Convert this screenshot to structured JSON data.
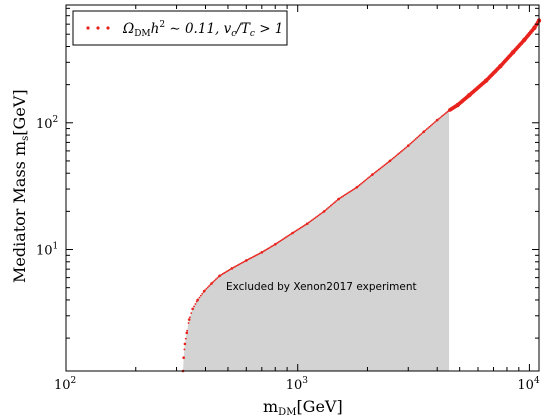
{
  "chart_data": {
    "type": "scatter",
    "x_scale": "log",
    "y_scale": "log",
    "xlim": [
      100,
      11000
    ],
    "ylim": [
      1.1,
      850
    ],
    "x_ticks": [
      {
        "value": 100,
        "base": "10",
        "exp": "2"
      },
      {
        "value": 1000,
        "base": "10",
        "exp": "3"
      },
      {
        "value": 10000,
        "base": "10",
        "exp": "4"
      }
    ],
    "y_ticks": [
      {
        "value": 10,
        "base": "10",
        "exp": "1"
      },
      {
        "value": 100,
        "base": "10",
        "exp": "2"
      }
    ],
    "xlabel": {
      "main": "m",
      "sub": "DM",
      "unit": "[GeV]"
    },
    "ylabel": {
      "main": "Mediator Mass m",
      "sub": "s",
      "unit": "[GeV]"
    },
    "legend": {
      "position": "top-left",
      "label": {
        "pre": "Ω",
        "sub1": "DM",
        "mid1": "h",
        "sup1": "2",
        "mid2": " ∼ 0.11, v",
        "sub2": "c",
        "mid3": "/T",
        "sub3": "c",
        "post": " > 1"
      }
    },
    "series": [
      {
        "name": "Ω_DM h² ∼ 0.11, v_c/T_c > 1",
        "color": "#e8231d",
        "marker": "dot",
        "points": [
          [
            320,
            1.1
          ],
          [
            322,
            1.4
          ],
          [
            326,
            1.8
          ],
          [
            332,
            2.2
          ],
          [
            340,
            2.8
          ],
          [
            352,
            3.4
          ],
          [
            370,
            4.0
          ],
          [
            395,
            4.7
          ],
          [
            425,
            5.4
          ],
          [
            460,
            6.2
          ],
          [
            520,
            7.1
          ],
          [
            600,
            8.2
          ],
          [
            700,
            9.5
          ],
          [
            800,
            11
          ],
          [
            950,
            13.5
          ],
          [
            1100,
            16
          ],
          [
            1300,
            20
          ],
          [
            1500,
            25
          ],
          [
            1800,
            31
          ],
          [
            2100,
            39
          ],
          [
            2500,
            50
          ],
          [
            3000,
            66
          ],
          [
            3500,
            85
          ],
          [
            4000,
            105
          ],
          [
            4500,
            125
          ],
          [
            4900,
            138
          ],
          [
            5500,
            165
          ],
          [
            6500,
            215
          ],
          [
            7500,
            280
          ],
          [
            8500,
            360
          ],
          [
            9500,
            450
          ],
          [
            10500,
            560
          ],
          [
            11000,
            640
          ]
        ]
      }
    ],
    "excluded_region": {
      "label": "Excluded by Xenon2017 experiment",
      "fill_color": "#d3d3d3",
      "x_max": 4500
    }
  }
}
